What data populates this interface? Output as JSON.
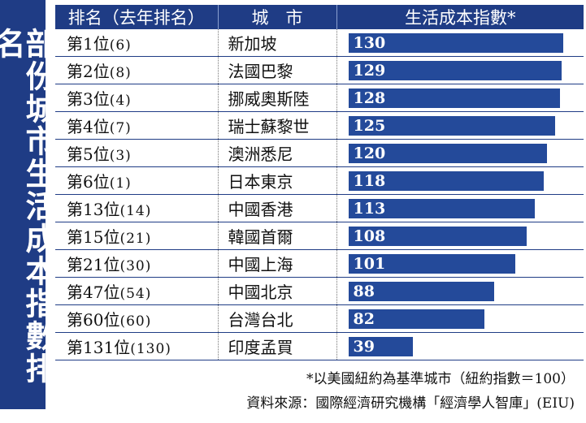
{
  "side_title": "部份城市生活成本指數排名",
  "header": {
    "rank": "排名（去年排名）",
    "city": "城　市",
    "index": "生活成本指數*"
  },
  "chart_data": {
    "type": "bar",
    "title": "部份城市生活成本指數排名",
    "xlim": [
      0,
      130
    ],
    "rows": [
      {
        "rank": "第1位",
        "prev": "(6)",
        "city": "新加坡",
        "value": 130
      },
      {
        "rank": "第2位",
        "prev": "(8)",
        "city": "法國巴黎",
        "value": 129
      },
      {
        "rank": "第3位",
        "prev": "(4)",
        "city": "挪威奧斯陸",
        "value": 128
      },
      {
        "rank": "第4位",
        "prev": "(7)",
        "city": "瑞士蘇黎世",
        "value": 125
      },
      {
        "rank": "第5位",
        "prev": "(3)",
        "city": "澳洲悉尼",
        "value": 120
      },
      {
        "rank": "第6位",
        "prev": "(1)",
        "city": "日本東京",
        "value": 118
      },
      {
        "rank": "第13位",
        "prev": "(14)",
        "city": "中國香港",
        "value": 113
      },
      {
        "rank": "第15位",
        "prev": "(21)",
        "city": "韓國首爾",
        "value": 108
      },
      {
        "rank": "第21位",
        "prev": "(30)",
        "city": "中國上海",
        "value": 101
      },
      {
        "rank": "第47位",
        "prev": "(54)",
        "city": "中國北京",
        "value": 88
      },
      {
        "rank": "第60位",
        "prev": "(60)",
        "city": "台灣台北",
        "value": 82
      },
      {
        "rank": "第131位",
        "prev": "(130)",
        "city": "印度孟買",
        "value": 39
      }
    ]
  },
  "notes": {
    "baseline": "*以美國紐約為基準城市（紐約指數＝100）",
    "source": "資料來源：國際經濟研究機構「經濟學人智庫」(EIU)"
  },
  "colors": {
    "navy": "#1f3c85",
    "bar": "#244a9a"
  }
}
